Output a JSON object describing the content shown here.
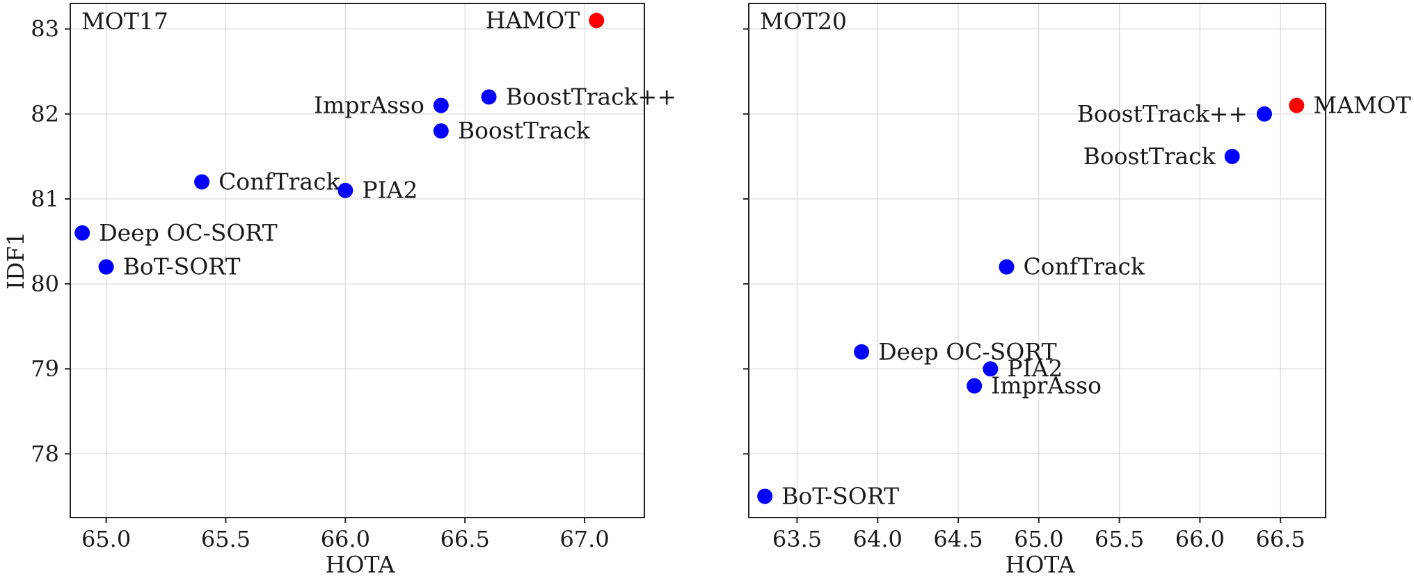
{
  "chart_data": [
    {
      "type": "scatter",
      "title": "MOT17",
      "xlabel": "HOTA",
      "ylabel": "IDF1",
      "xlim": [
        64.85,
        67.25
      ],
      "ylim": [
        77.25,
        83.3
      ],
      "xticks": [
        "65.0",
        "65.5",
        "66.0",
        "66.5",
        "67.0"
      ],
      "yticks": [
        "78",
        "79",
        "80",
        "81",
        "82",
        "83"
      ],
      "grid": true,
      "points": [
        {
          "label": "HAMOT",
          "x": 67.05,
          "y": 83.1,
          "color": "#ff0000",
          "label_side": "left"
        },
        {
          "label": "BoostTrack++",
          "x": 66.6,
          "y": 82.2,
          "color": "#0000ff",
          "label_side": "right"
        },
        {
          "label": "ImprAsso",
          "x": 66.4,
          "y": 82.1,
          "color": "#0000ff",
          "label_side": "left"
        },
        {
          "label": "BoostTrack",
          "x": 66.4,
          "y": 81.8,
          "color": "#0000ff",
          "label_side": "right"
        },
        {
          "label": "ConfTrack",
          "x": 65.4,
          "y": 81.2,
          "color": "#0000ff",
          "label_side": "right"
        },
        {
          "label": "PIA2",
          "x": 66.0,
          "y": 81.1,
          "color": "#0000ff",
          "label_side": "right"
        },
        {
          "label": "Deep OC-SORT",
          "x": 64.9,
          "y": 80.6,
          "color": "#0000ff",
          "label_side": "right"
        },
        {
          "label": "BoT-SORT",
          "x": 65.0,
          "y": 80.2,
          "color": "#0000ff",
          "label_side": "right"
        }
      ]
    },
    {
      "type": "scatter",
      "title": "MOT20",
      "xlabel": "HOTA",
      "ylabel": "",
      "xlim": [
        63.2,
        66.78
      ],
      "ylim": [
        77.25,
        83.3
      ],
      "xticks": [
        "63.5",
        "64.0",
        "64.5",
        "65.0",
        "65.5",
        "66.0",
        "66.5"
      ],
      "yticks": [
        "78",
        "79",
        "80",
        "81",
        "82",
        "83"
      ],
      "grid": true,
      "points": [
        {
          "label": "MAMOT",
          "x": 66.6,
          "y": 82.1,
          "color": "#ff0000",
          "label_side": "right"
        },
        {
          "label": "BoostTrack++",
          "x": 66.4,
          "y": 82.0,
          "color": "#0000ff",
          "label_side": "left"
        },
        {
          "label": "BoostTrack",
          "x": 66.2,
          "y": 81.5,
          "color": "#0000ff",
          "label_side": "left"
        },
        {
          "label": "ConfTrack",
          "x": 64.8,
          "y": 80.2,
          "color": "#0000ff",
          "label_side": "right"
        },
        {
          "label": "Deep OC-SORT",
          "x": 63.9,
          "y": 79.2,
          "color": "#0000ff",
          "label_side": "right"
        },
        {
          "label": "PIA2",
          "x": 64.7,
          "y": 79.0,
          "color": "#0000ff",
          "label_side": "right"
        },
        {
          "label": "ImprAsso",
          "x": 64.6,
          "y": 78.8,
          "color": "#0000ff",
          "label_side": "right"
        },
        {
          "label": "BoT-SORT",
          "x": 63.3,
          "y": 77.5,
          "color": "#0000ff",
          "label_side": "right"
        }
      ]
    }
  ]
}
